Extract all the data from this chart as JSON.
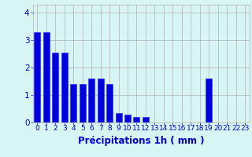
{
  "values": [
    3.3,
    3.3,
    2.55,
    2.55,
    1.4,
    1.4,
    1.6,
    1.6,
    1.4,
    0.35,
    0.3,
    0.2,
    0.2,
    0.0,
    0.0,
    0.0,
    0.0,
    0.0,
    0.0,
    1.6,
    0.0,
    0.0,
    0.0,
    0.0
  ],
  "bar_color": "#0000dd",
  "bar_edge_color": "#3333ff",
  "background_color": "#d8f5f5",
  "grid_color": "#b0b0b0",
  "xlabel": "Précipitations 1h ( mm )",
  "xlabel_color": "#0000cc",
  "tick_color": "#0000cc",
  "ylim": [
    0,
    4.3
  ],
  "yticks": [
    0,
    1,
    2,
    3,
    4
  ],
  "label_fontsize": 6.5,
  "xlabel_fontsize": 8.5
}
